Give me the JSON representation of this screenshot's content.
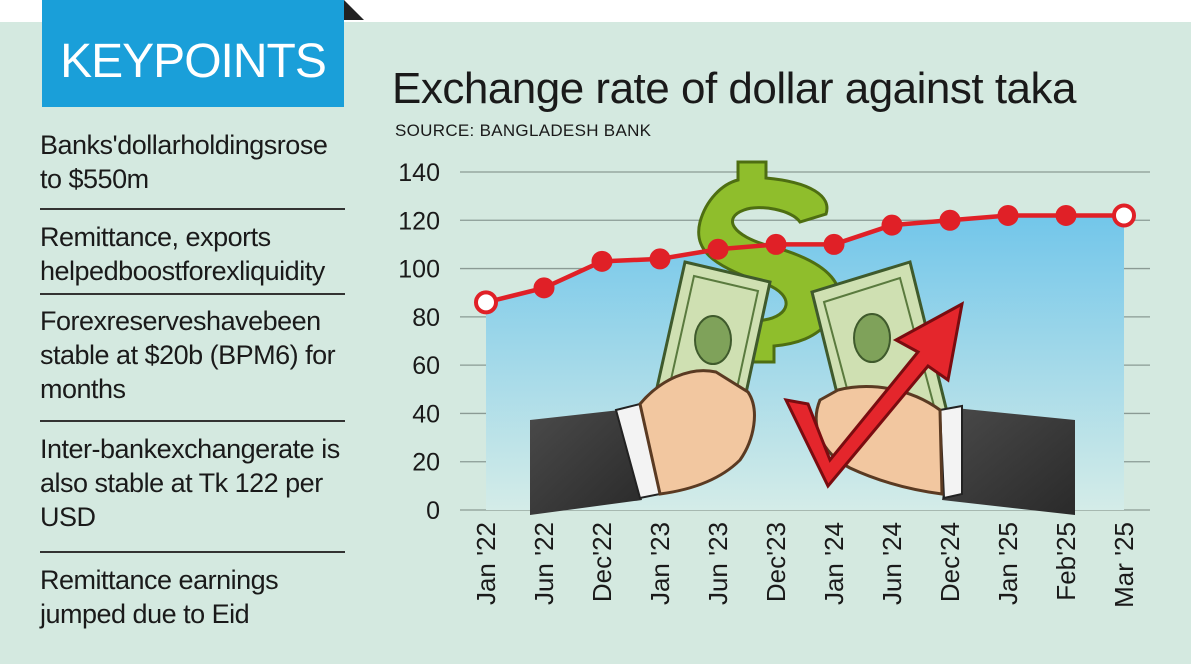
{
  "keypoints": {
    "title": "KEYPOINTS",
    "items": [
      "Banks'dollarholdingsrose to $550m",
      "Remittance, exports helpedboostforexliquidity",
      "Forexreserveshavebeen stable at $20b (BPM6) for months",
      "Inter-bankexchangerate is also stable at Tk 122 per USD",
      "Remittance earnings jumped due to Eid"
    ]
  },
  "chart_data": {
    "type": "line",
    "title": "Exchange rate of dollar against taka",
    "source": "SOURCE: BANGLADESH BANK",
    "categories": [
      "Jan '22",
      "Jun '22",
      "Dec'22",
      "Jan '23",
      "Jun '23",
      "Dec'23",
      "Jan '24",
      "Jun '24",
      "Dec'24",
      "Jan '25",
      "Feb'25",
      "Mar '25"
    ],
    "series": [
      {
        "values": [
          86,
          92,
          103,
          104,
          108,
          110,
          110,
          118,
          120,
          122,
          122,
          122
        ]
      }
    ],
    "ylim": [
      0,
      140
    ],
    "yticks": [
      0,
      20,
      40,
      60,
      80,
      100,
      120,
      140
    ],
    "xlabel": "",
    "ylabel": "",
    "grid": true,
    "line_color": "#e02027",
    "area_color": "#7fcdea"
  }
}
